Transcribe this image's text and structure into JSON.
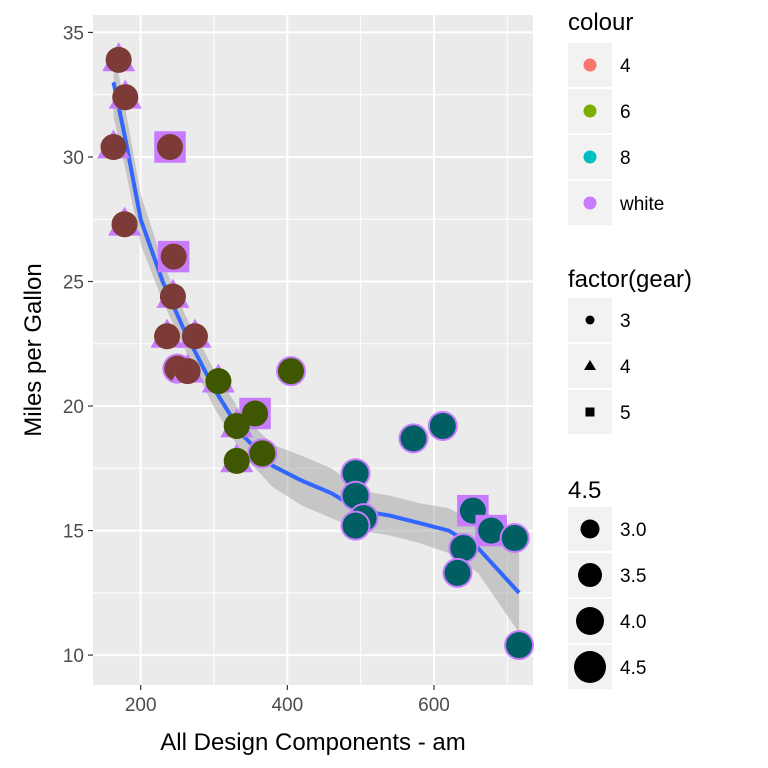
{
  "chart_data": {
    "type": "scatter",
    "xlabel": "All Design Components - am",
    "ylabel": "Miles per Gallon",
    "xlim": [
      135,
      735
    ],
    "ylim": [
      8.8,
      35.7
    ],
    "x_ticks": [
      200,
      400,
      600
    ],
    "x_tick_labels": [
      "200",
      "400",
      "600"
    ],
    "y_ticks": [
      10,
      15,
      20,
      25,
      30,
      35
    ],
    "y_tick_labels": [
      "10",
      "15",
      "20",
      "25",
      "30",
      "35"
    ],
    "grid": true,
    "legend_position": "right",
    "colors": {
      "4": "#F8766D",
      "6": "#7CAE00",
      "8": "#00BFC4",
      "white": "#C77CFF",
      "smooth_line": "#3366FF",
      "panel": "#EBEBEB",
      "ribbon": "#999999"
    },
    "legends": {
      "colour": {
        "title": "colour",
        "keys": [
          "4",
          "6",
          "8",
          "white"
        ]
      },
      "shape": {
        "title": "factor(gear)",
        "keys": [
          "3",
          "4",
          "5"
        ]
      },
      "size": {
        "title": "4.5",
        "keys": [
          "3.0",
          "3.5",
          "4.0",
          "4.5"
        ]
      }
    },
    "points": [
      {
        "x": 170,
        "y": 33.9,
        "cyl": "4",
        "gear": "4"
      },
      {
        "x": 179,
        "y": 32.4,
        "cyl": "4",
        "gear": "4"
      },
      {
        "x": 163,
        "y": 30.4,
        "cyl": "4",
        "gear": "4"
      },
      {
        "x": 240,
        "y": 30.4,
        "cyl": "4",
        "gear": "5"
      },
      {
        "x": 178,
        "y": 27.3,
        "cyl": "4",
        "gear": "4"
      },
      {
        "x": 245,
        "y": 26.0,
        "cyl": "4",
        "gear": "5"
      },
      {
        "x": 244,
        "y": 24.4,
        "cyl": "4",
        "gear": "4"
      },
      {
        "x": 236,
        "y": 22.8,
        "cyl": "4",
        "gear": "4"
      },
      {
        "x": 274,
        "y": 22.8,
        "cyl": "4",
        "gear": "4"
      },
      {
        "x": 250,
        "y": 21.5,
        "cyl": "4",
        "gear": "3"
      },
      {
        "x": 264,
        "y": 21.4,
        "cyl": "4",
        "gear": "4"
      },
      {
        "x": 306,
        "y": 21.0,
        "cyl": "6",
        "gear": "4"
      },
      {
        "x": 405,
        "y": 21.4,
        "cyl": "6",
        "gear": "3"
      },
      {
        "x": 356,
        "y": 19.7,
        "cyl": "6",
        "gear": "5"
      },
      {
        "x": 331,
        "y": 19.2,
        "cyl": "6",
        "gear": "4"
      },
      {
        "x": 366,
        "y": 18.1,
        "cyl": "6",
        "gear": "3"
      },
      {
        "x": 331,
        "y": 17.8,
        "cyl": "6",
        "gear": "4"
      },
      {
        "x": 612,
        "y": 19.2,
        "cyl": "8",
        "gear": "3"
      },
      {
        "x": 572,
        "y": 18.7,
        "cyl": "8",
        "gear": "3"
      },
      {
        "x": 493,
        "y": 17.3,
        "cyl": "8",
        "gear": "3"
      },
      {
        "x": 493,
        "y": 16.4,
        "cyl": "8",
        "gear": "3"
      },
      {
        "x": 653,
        "y": 15.8,
        "cyl": "8",
        "gear": "5"
      },
      {
        "x": 504,
        "y": 15.5,
        "cyl": "8",
        "gear": "3"
      },
      {
        "x": 493,
        "y": 15.2,
        "cyl": "8",
        "gear": "3"
      },
      {
        "x": 678,
        "y": 15.0,
        "cyl": "8",
        "gear": "5"
      },
      {
        "x": 710,
        "y": 14.7,
        "cyl": "8",
        "gear": "3"
      },
      {
        "x": 640,
        "y": 14.3,
        "cyl": "8",
        "gear": "3"
      },
      {
        "x": 632,
        "y": 13.3,
        "cyl": "8",
        "gear": "3"
      },
      {
        "x": 716,
        "y": 10.4,
        "cyl": "8",
        "gear": "3"
      }
    ],
    "smooth_line": [
      {
        "x": 163,
        "y": 33.0
      },
      {
        "x": 180,
        "y": 30.6
      },
      {
        "x": 200,
        "y": 27.5
      },
      {
        "x": 230,
        "y": 25.0
      },
      {
        "x": 260,
        "y": 23.0
      },
      {
        "x": 300,
        "y": 20.7
      },
      {
        "x": 340,
        "y": 18.8
      },
      {
        "x": 380,
        "y": 17.6
      },
      {
        "x": 420,
        "y": 17.0
      },
      {
        "x": 460,
        "y": 16.5
      },
      {
        "x": 500,
        "y": 15.8
      },
      {
        "x": 540,
        "y": 15.6
      },
      {
        "x": 580,
        "y": 15.3
      },
      {
        "x": 620,
        "y": 15.0
      },
      {
        "x": 660,
        "y": 14.3
      },
      {
        "x": 716,
        "y": 12.5
      }
    ],
    "ribbon_halfwidth": [
      1.4,
      1.2,
      1.0,
      0.8,
      0.7,
      0.75,
      0.8,
      0.85,
      1.0,
      1.0,
      0.8,
      0.8,
      0.8,
      0.9,
      1.0,
      1.6
    ]
  }
}
